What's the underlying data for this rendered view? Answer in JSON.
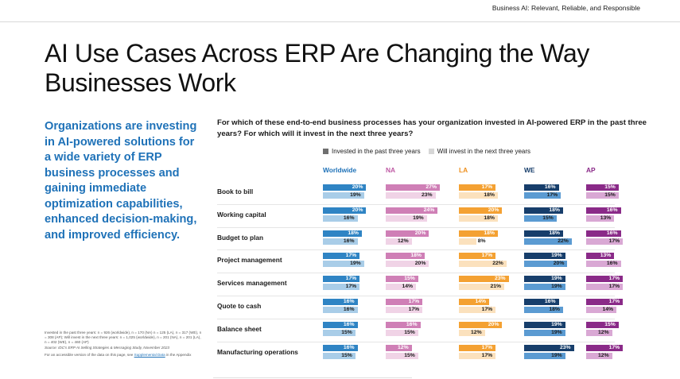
{
  "header": {
    "tag": "Business AI: Relevant, Reliable, and Responsible"
  },
  "page_title": "AI Use Cases Across ERP Are Changing the Way Businesses Work",
  "sidebar_text": "Organizations are investing in AI-powered solutions for a wide variety of ERP business processes and gaining immediate optimization capabilities, enhanced decision-making, and improved efficiency.",
  "footnote": {
    "base": "Invested in the past three years: n = 926 (worldwide), n = 170 (NA) n = 125 (LA), n = 317 (WE), n = 308 (AP); Will invest in the next three years: n = 1,025 (worldwide), n = 201 (NA), n = 201 (LA), n = 402 (WE), n = 460 (AP)",
    "source": "Source: IDC's ERP AI Selling Strategies & Messaging Study, November 2023",
    "access_text": "For an accessible version of the data on this page, see ",
    "access_link": "Supplemental Data",
    "access_suffix": " in the Appendix"
  },
  "colors": {
    "Worldwide": {
      "dark": "#2f84c4",
      "light": "#a9cde8",
      "header": "#1f72b8"
    },
    "NA": {
      "dark": "#cf7fb6",
      "light": "#f0d3e6",
      "header": "#bf5aa4"
    },
    "LA": {
      "dark": "#f4a132",
      "light": "#fbe1bd",
      "header": "#ee8f1c"
    },
    "WE": {
      "dark": "#173e6b",
      "light": "#5b9bd2",
      "header": "#173e6b"
    },
    "AP": {
      "dark": "#8a2a88",
      "light": "#d9a8d4",
      "header": "#8a2a88"
    }
  },
  "chart_data": {
    "type": "bar",
    "title": "For which of these end-to-end business processes has your organization invested in AI-powered ERP in the past three years? For which will it invest in the next three years?",
    "unit": "%",
    "legend": [
      "Invested in the past three years",
      "Will invest in the next three years"
    ],
    "regions": [
      "Worldwide",
      "NA",
      "LA",
      "WE",
      "AP"
    ],
    "categories": [
      "Book to bill",
      "Working capital",
      "Budget to plan",
      "Project management",
      "Services management",
      "Quote to cash",
      "Balance sheet",
      "Manufacturing operations"
    ],
    "scale_max": 25,
    "series": [
      {
        "region": "Worldwide",
        "invested": [
          20,
          20,
          18,
          17,
          17,
          16,
          16,
          16
        ],
        "will_invest": [
          19,
          16,
          16,
          19,
          17,
          16,
          15,
          15
        ]
      },
      {
        "region": "NA",
        "invested": [
          27,
          24,
          20,
          18,
          15,
          17,
          16,
          12
        ],
        "will_invest": [
          23,
          19,
          12,
          20,
          14,
          17,
          15,
          15
        ]
      },
      {
        "region": "LA",
        "invested": [
          17,
          20,
          18,
          17,
          23,
          14,
          20,
          17
        ],
        "will_invest": [
          18,
          18,
          8,
          22,
          21,
          17,
          12,
          17
        ]
      },
      {
        "region": "WE",
        "invested": [
          16,
          18,
          18,
          19,
          19,
          16,
          19,
          23
        ],
        "will_invest": [
          17,
          15,
          22,
          20,
          19,
          18,
          19,
          19
        ]
      },
      {
        "region": "AP",
        "invested": [
          15,
          16,
          16,
          13,
          17,
          17,
          15,
          17
        ],
        "will_invest": [
          15,
          13,
          17,
          16,
          17,
          14,
          12,
          12
        ]
      }
    ]
  }
}
